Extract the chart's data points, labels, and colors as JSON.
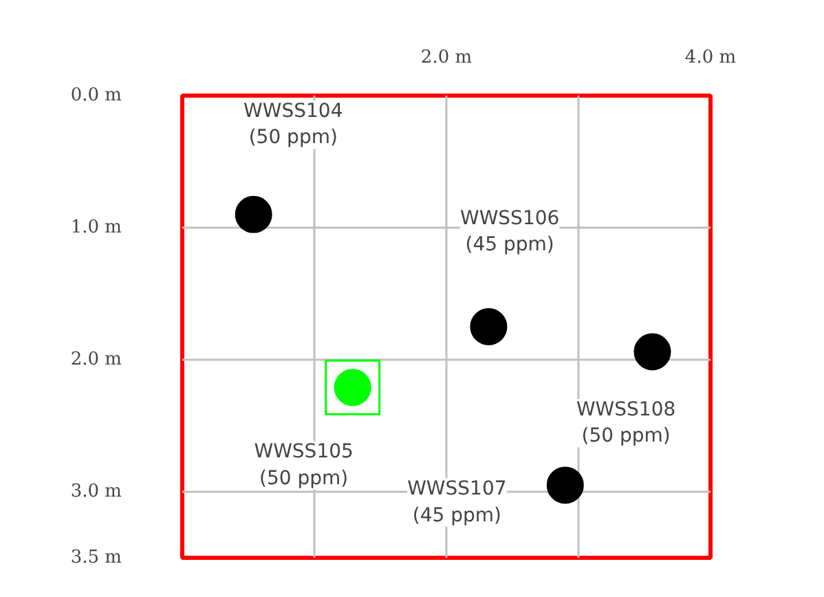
{
  "chart_data": {
    "type": "scatter",
    "series": [
      {
        "color": "#000000",
        "x": [
          0.54,
          2.32,
          3.56,
          2.9
        ],
        "values": [
          0.9,
          1.75,
          1.94,
          2.95
        ],
        "marker": "circle"
      },
      {
        "color": "#00ff00",
        "x": [
          1.29
        ],
        "values": [
          2.21
        ],
        "marker": "circle"
      },
      {
        "color": "#00ff00",
        "x": [
          1.29
        ],
        "values": [
          2.21
        ],
        "marker": "square"
      }
    ],
    "xlim": [
      0,
      4
    ],
    "ylim": [
      3.5,
      0
    ],
    "xticks": [
      {
        "value": 1,
        "label": null
      },
      {
        "value": 2,
        "label": "2.0 m"
      },
      {
        "value": 3,
        "label": null
      },
      {
        "value": 4,
        "label": "4.0 m"
      }
    ],
    "yticks": [
      {
        "value": 0,
        "label": "0.0 m"
      },
      {
        "value": 1,
        "label": "1.0 m"
      },
      {
        "value": 2,
        "label": "2.0 m"
      },
      {
        "value": 3,
        "label": "3.0 m"
      },
      {
        "value": 3.5,
        "label": "3.5 m"
      }
    ],
    "grid": true,
    "annotations": [
      "WWSS104\n(50 ppm)",
      "WWSS106\n(45 ppm)",
      "WWSS108\n(50 ppm)",
      "WWSS105\n(50 ppm)",
      "WWSS107\n(45 ppm)"
    ]
  }
}
